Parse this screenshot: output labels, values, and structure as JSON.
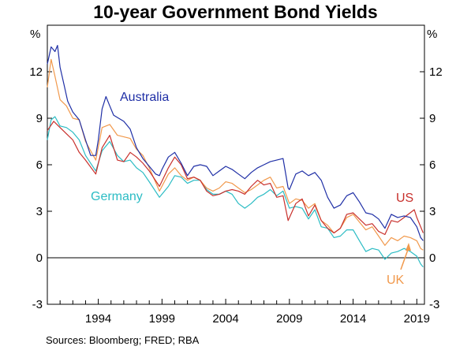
{
  "chart_data": {
    "type": "line",
    "title": "10-year Government Bond Yields",
    "ylabel_left": "%",
    "ylabel_right": "%",
    "ylim": [
      -3,
      15
    ],
    "xlim": [
      1990.0,
      2019.6
    ],
    "y_ticks": [
      -3,
      0,
      3,
      6,
      9,
      12
    ],
    "x_ticks": [
      1994,
      1999,
      2004,
      2009,
      2014,
      2019
    ],
    "grid": false,
    "zero_line": true,
    "source": "Sources:   Bloomberg; FRED; RBA",
    "series": [
      {
        "name": "Australia",
        "color": "#1f2fa6",
        "x": [
          1990.0,
          1990.3,
          1990.6,
          1990.8,
          1991.0,
          1991.3,
          1991.6,
          1992.0,
          1992.5,
          1993.0,
          1993.4,
          1993.8,
          1994.0,
          1994.3,
          1994.6,
          1994.9,
          1995.2,
          1995.6,
          1996.0,
          1996.5,
          1997.0,
          1997.5,
          1998.0,
          1998.5,
          1998.8,
          1999.0,
          1999.5,
          2000.0,
          2000.5,
          2001.0,
          2001.5,
          2002.0,
          2002.5,
          2003.0,
          2003.5,
          2004.0,
          2004.5,
          2005.0,
          2005.5,
          2006.0,
          2006.5,
          2007.0,
          2007.5,
          2008.0,
          2008.5,
          2008.9,
          2009.0,
          2009.5,
          2010.0,
          2010.5,
          2011.0,
          2011.5,
          2012.0,
          2012.5,
          2013.0,
          2013.5,
          2014.0,
          2014.5,
          2015.0,
          2015.5,
          2016.0,
          2016.5,
          2017.0,
          2017.5,
          2018.0,
          2018.5,
          2019.0,
          2019.3,
          2019.5
        ],
        "y": [
          12.5,
          13.6,
          13.3,
          13.7,
          12.3,
          11.2,
          10.1,
          9.4,
          8.9,
          7.6,
          6.6,
          6.6,
          7.6,
          9.6,
          10.4,
          9.8,
          9.2,
          9.0,
          8.8,
          8.3,
          7.1,
          6.4,
          5.9,
          5.4,
          5.3,
          5.7,
          6.5,
          6.8,
          6.1,
          5.3,
          5.9,
          6.0,
          5.9,
          5.3,
          5.6,
          5.9,
          5.7,
          5.4,
          5.1,
          5.5,
          5.8,
          6.0,
          6.2,
          6.3,
          6.4,
          4.5,
          4.4,
          5.4,
          5.6,
          5.3,
          5.5,
          5.0,
          3.9,
          3.2,
          3.4,
          4.0,
          4.2,
          3.6,
          2.9,
          2.8,
          2.5,
          1.9,
          2.8,
          2.6,
          2.7,
          2.6,
          2.0,
          1.3,
          1.1
        ]
      },
      {
        "name": "US",
        "color": "#c8302c",
        "x": [
          1990.0,
          1990.5,
          1991.0,
          1991.5,
          1992.0,
          1992.5,
          1993.0,
          1993.8,
          1994.3,
          1994.9,
          1995.5,
          1996.0,
          1996.5,
          1997.0,
          1997.5,
          1998.0,
          1998.8,
          1999.5,
          2000.0,
          2000.5,
          2001.0,
          2001.5,
          2002.0,
          2002.5,
          2003.0,
          2003.5,
          2004.0,
          2004.5,
          2005.0,
          2005.5,
          2006.0,
          2006.5,
          2007.0,
          2007.5,
          2008.0,
          2008.5,
          2008.9,
          2009.5,
          2010.0,
          2010.5,
          2011.0,
          2011.5,
          2012.0,
          2012.5,
          2013.0,
          2013.5,
          2014.0,
          2014.5,
          2015.0,
          2015.5,
          2016.0,
          2016.5,
          2017.0,
          2017.5,
          2018.0,
          2018.8,
          2019.0,
          2019.3,
          2019.5
        ],
        "y": [
          8.2,
          8.8,
          8.4,
          8.0,
          7.6,
          6.8,
          6.3,
          5.4,
          7.1,
          7.9,
          6.3,
          6.2,
          6.8,
          6.5,
          6.1,
          5.6,
          4.6,
          5.8,
          6.5,
          6.0,
          5.1,
          5.2,
          5.0,
          4.3,
          4.0,
          4.1,
          4.3,
          4.4,
          4.3,
          4.1,
          4.6,
          5.0,
          4.7,
          4.8,
          3.9,
          4.0,
          2.4,
          3.5,
          3.8,
          2.7,
          3.4,
          2.4,
          1.9,
          1.6,
          1.9,
          2.8,
          2.9,
          2.5,
          2.1,
          2.2,
          1.7,
          1.5,
          2.4,
          2.3,
          2.6,
          3.1,
          2.6,
          2.0,
          1.6
        ]
      },
      {
        "name": "UK",
        "color": "#f1994c",
        "x": [
          1990.0,
          1990.3,
          1990.6,
          1991.0,
          1991.5,
          1992.0,
          1992.5,
          1993.0,
          1993.8,
          1994.3,
          1994.9,
          1995.5,
          1996.0,
          1996.5,
          1997.0,
          1997.5,
          1998.0,
          1998.8,
          1999.5,
          2000.0,
          2000.5,
          2001.0,
          2001.5,
          2002.0,
          2002.5,
          2003.0,
          2003.5,
          2004.0,
          2004.5,
          2005.0,
          2005.5,
          2006.0,
          2006.5,
          2007.0,
          2007.5,
          2008.0,
          2008.5,
          2009.0,
          2009.5,
          2010.0,
          2010.5,
          2011.0,
          2011.5,
          2012.0,
          2012.5,
          2013.0,
          2013.5,
          2014.0,
          2014.5,
          2015.0,
          2015.5,
          2016.0,
          2016.5,
          2017.0,
          2017.5,
          2018.0,
          2018.5,
          2019.0,
          2019.3,
          2019.5
        ],
        "y": [
          11.0,
          12.8,
          11.7,
          10.2,
          9.8,
          9.0,
          8.9,
          7.5,
          6.3,
          8.4,
          8.6,
          7.9,
          7.8,
          7.7,
          7.0,
          6.6,
          5.8,
          4.3,
          5.4,
          5.8,
          5.3,
          5.0,
          5.2,
          5.0,
          4.5,
          4.3,
          4.5,
          4.9,
          4.8,
          4.5,
          4.2,
          4.4,
          4.7,
          5.0,
          5.2,
          4.5,
          4.6,
          3.5,
          3.8,
          3.7,
          3.2,
          3.5,
          2.4,
          2.1,
          1.6,
          1.9,
          2.6,
          2.8,
          2.3,
          1.8,
          2.0,
          1.4,
          0.8,
          1.3,
          1.1,
          1.4,
          1.3,
          1.1,
          0.6,
          0.5
        ]
      },
      {
        "name": "Germany",
        "color": "#2bbcc4",
        "x": [
          1990.0,
          1990.3,
          1990.6,
          1991.0,
          1991.5,
          1992.0,
          1992.5,
          1993.0,
          1993.8,
          1994.3,
          1994.9,
          1995.5,
          1996.0,
          1996.5,
          1997.0,
          1997.5,
          1998.0,
          1998.8,
          1999.5,
          2000.0,
          2000.5,
          2001.0,
          2001.5,
          2002.0,
          2002.5,
          2003.0,
          2003.5,
          2004.0,
          2004.5,
          2005.0,
          2005.5,
          2006.0,
          2006.5,
          2007.0,
          2007.5,
          2008.0,
          2008.5,
          2009.0,
          2009.5,
          2010.0,
          2010.5,
          2011.0,
          2011.5,
          2012.0,
          2012.5,
          2013.0,
          2013.5,
          2014.0,
          2014.5,
          2015.0,
          2015.5,
          2016.0,
          2016.5,
          2017.0,
          2017.5,
          2018.0,
          2018.5,
          2019.0,
          2019.3,
          2019.5
        ],
        "y": [
          7.6,
          8.9,
          9.1,
          8.5,
          8.4,
          8.1,
          7.6,
          6.6,
          5.6,
          6.9,
          7.5,
          6.6,
          6.2,
          6.3,
          5.8,
          5.5,
          4.9,
          3.9,
          4.6,
          5.3,
          5.2,
          4.8,
          5.0,
          5.0,
          4.4,
          4.1,
          4.1,
          4.3,
          4.1,
          3.5,
          3.2,
          3.5,
          3.9,
          4.1,
          4.4,
          4.0,
          4.3,
          3.2,
          3.3,
          3.2,
          2.5,
          3.1,
          2.0,
          1.9,
          1.3,
          1.4,
          1.8,
          1.8,
          1.1,
          0.4,
          0.6,
          0.5,
          -0.1,
          0.3,
          0.4,
          0.6,
          0.4,
          0.1,
          -0.4,
          -0.6
        ]
      }
    ]
  }
}
